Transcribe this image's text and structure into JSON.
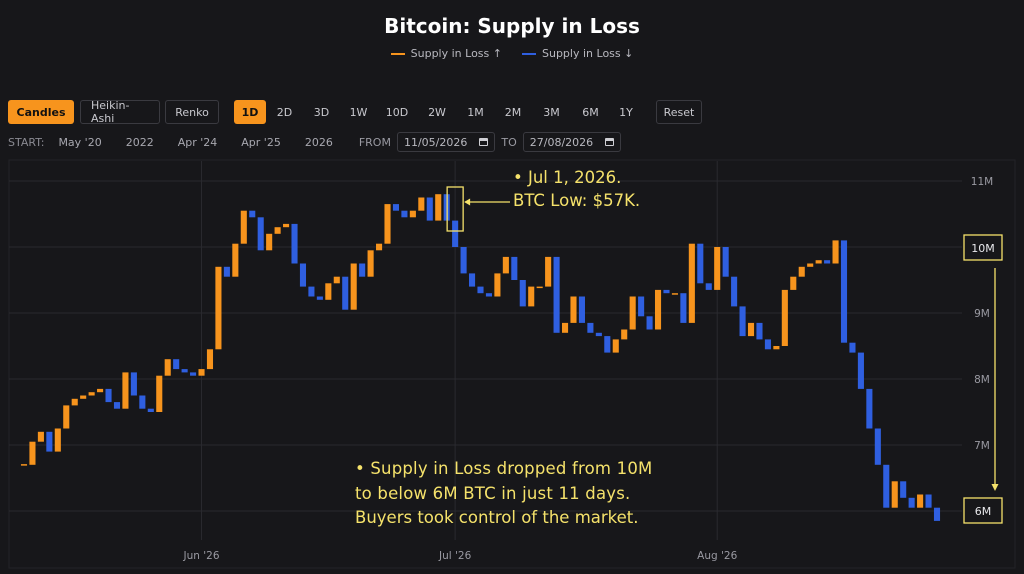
{
  "title": "Bitcoin: Supply in Loss",
  "legend": [
    {
      "label": "Supply in Loss ↑",
      "color": "#f7941d"
    },
    {
      "label": "Supply in Loss ↓",
      "color": "#2f5fe0"
    }
  ],
  "toolbar": {
    "chart_types": [
      "Candles",
      "Heikin-Ashi",
      "Renko"
    ],
    "active_chart_type": "Candles",
    "periods": [
      "1D",
      "2D",
      "3D",
      "1W",
      "10D",
      "2W",
      "1M",
      "2M",
      "3M",
      "6M",
      "1Y"
    ],
    "active_period": "1D",
    "reset_label": "Reset"
  },
  "date_range": {
    "start_label": "START:",
    "quick": [
      "May '20",
      "2022",
      "Apr '24",
      "Apr '25",
      "2026"
    ],
    "from_label": "FROM",
    "from_value": "11/05/2026",
    "to_label": "TO",
    "to_value": "27/08/2026"
  },
  "annotations": {
    "top_line1": "• Jul 1, 2026.",
    "top_line2": "BTC Low: $57K.",
    "bottom_line1": "• Supply in Loss dropped from 10M",
    "bottom_line2": "to below 6M BTC in just 11 days.",
    "bottom_line3": "Buyers took control of the market.",
    "label_10m": "10M",
    "label_6m": "6M",
    "highlight_color": "#f5e26b"
  },
  "colors": {
    "up": "#f7941d",
    "down": "#2f5fe0",
    "background": "#17171a",
    "grid": "#2a2a2f"
  },
  "chart_data": {
    "type": "candlestick",
    "title": "Bitcoin: Supply in Loss",
    "y_unit": "BTC",
    "ylim": [
      5.5,
      11.0
    ],
    "y_ticks": [
      6,
      7,
      8,
      9,
      10,
      11
    ],
    "y_tick_labels": [
      "6M",
      "7M",
      "8M",
      "9M",
      "10M",
      "11M"
    ],
    "x_ticks": [
      "Jun '26",
      "Jul '26",
      "Aug '26"
    ],
    "x_tick_dates": [
      "2026-06-01",
      "2026-07-01",
      "2026-08-01"
    ],
    "date_range": [
      "2026-05-11",
      "2026-08-27"
    ],
    "grid": true,
    "legend_position": "top-center",
    "series": [
      {
        "name": "Supply in Loss ↑",
        "color": "#f7941d"
      },
      {
        "name": "Supply in Loss ↓",
        "color": "#2f5fe0"
      }
    ],
    "candles": [
      {
        "date": "2026-05-11",
        "open": 6.69,
        "close": 6.71
      },
      {
        "date": "2026-05-12",
        "open": 6.7,
        "close": 7.05
      },
      {
        "date": "2026-05-13",
        "open": 7.05,
        "close": 7.2
      },
      {
        "date": "2026-05-14",
        "open": 7.2,
        "close": 6.9
      },
      {
        "date": "2026-05-15",
        "open": 6.9,
        "close": 7.25
      },
      {
        "date": "2026-05-16",
        "open": 7.25,
        "close": 7.6
      },
      {
        "date": "2026-05-17",
        "open": 7.6,
        "close": 7.7
      },
      {
        "date": "2026-05-18",
        "open": 7.7,
        "close": 7.75
      },
      {
        "date": "2026-05-19",
        "open": 7.75,
        "close": 7.8
      },
      {
        "date": "2026-05-20",
        "open": 7.8,
        "close": 7.85
      },
      {
        "date": "2026-05-21",
        "open": 7.85,
        "close": 7.65
      },
      {
        "date": "2026-05-22",
        "open": 7.65,
        "close": 7.55
      },
      {
        "date": "2026-05-23",
        "open": 7.55,
        "close": 8.1
      },
      {
        "date": "2026-05-24",
        "open": 8.1,
        "close": 7.75
      },
      {
        "date": "2026-05-25",
        "open": 7.75,
        "close": 7.55
      },
      {
        "date": "2026-05-26",
        "open": 7.55,
        "close": 7.5
      },
      {
        "date": "2026-05-27",
        "open": 7.5,
        "close": 8.05
      },
      {
        "date": "2026-05-28",
        "open": 8.05,
        "close": 8.3
      },
      {
        "date": "2026-05-29",
        "open": 8.3,
        "close": 8.15
      },
      {
        "date": "2026-05-30",
        "open": 8.15,
        "close": 8.1
      },
      {
        "date": "2026-05-31",
        "open": 8.1,
        "close": 8.05
      },
      {
        "date": "2026-06-01",
        "open": 8.05,
        "close": 8.15
      },
      {
        "date": "2026-06-02",
        "open": 8.15,
        "close": 8.45
      },
      {
        "date": "2026-06-03",
        "open": 8.45,
        "close": 9.7
      },
      {
        "date": "2026-06-04",
        "open": 9.7,
        "close": 9.55
      },
      {
        "date": "2026-06-05",
        "open": 9.55,
        "close": 10.05
      },
      {
        "date": "2026-06-06",
        "open": 10.05,
        "close": 10.55
      },
      {
        "date": "2026-06-07",
        "open": 10.55,
        "close": 10.45
      },
      {
        "date": "2026-06-08",
        "open": 10.45,
        "close": 9.95
      },
      {
        "date": "2026-06-09",
        "open": 9.95,
        "close": 10.2
      },
      {
        "date": "2026-06-10",
        "open": 10.2,
        "close": 10.3
      },
      {
        "date": "2026-06-11",
        "open": 10.3,
        "close": 10.35
      },
      {
        "date": "2026-06-12",
        "open": 10.35,
        "close": 9.75
      },
      {
        "date": "2026-06-13",
        "open": 9.75,
        "close": 9.4
      },
      {
        "date": "2026-06-14",
        "open": 9.4,
        "close": 9.25
      },
      {
        "date": "2026-06-15",
        "open": 9.25,
        "close": 9.2
      },
      {
        "date": "2026-06-16",
        "open": 9.2,
        "close": 9.45
      },
      {
        "date": "2026-06-17",
        "open": 9.45,
        "close": 9.55
      },
      {
        "date": "2026-06-18",
        "open": 9.55,
        "close": 9.05
      },
      {
        "date": "2026-06-19",
        "open": 9.05,
        "close": 9.75
      },
      {
        "date": "2026-06-20",
        "open": 9.75,
        "close": 9.55
      },
      {
        "date": "2026-06-21",
        "open": 9.55,
        "close": 9.95
      },
      {
        "date": "2026-06-22",
        "open": 9.95,
        "close": 10.05
      },
      {
        "date": "2026-06-23",
        "open": 10.05,
        "close": 10.65
      },
      {
        "date": "2026-06-24",
        "open": 10.65,
        "close": 10.55
      },
      {
        "date": "2026-06-25",
        "open": 10.55,
        "close": 10.45
      },
      {
        "date": "2026-06-26",
        "open": 10.45,
        "close": 10.55
      },
      {
        "date": "2026-06-27",
        "open": 10.55,
        "close": 10.75
      },
      {
        "date": "2026-06-28",
        "open": 10.75,
        "close": 10.4
      },
      {
        "date": "2026-06-29",
        "open": 10.4,
        "close": 10.8
      },
      {
        "date": "2026-06-30",
        "open": 10.8,
        "close": 10.4
      },
      {
        "date": "2026-07-01",
        "open": 10.4,
        "close": 10.0
      },
      {
        "date": "2026-07-02",
        "open": 10.0,
        "close": 9.6
      },
      {
        "date": "2026-07-03",
        "open": 9.6,
        "close": 9.4
      },
      {
        "date": "2026-07-04",
        "open": 9.4,
        "close": 9.3
      },
      {
        "date": "2026-07-05",
        "open": 9.3,
        "close": 9.25
      },
      {
        "date": "2026-07-06",
        "open": 9.25,
        "close": 9.6
      },
      {
        "date": "2026-07-07",
        "open": 9.6,
        "close": 9.85
      },
      {
        "date": "2026-07-08",
        "open": 9.85,
        "close": 9.5
      },
      {
        "date": "2026-07-09",
        "open": 9.5,
        "close": 9.1
      },
      {
        "date": "2026-07-10",
        "open": 9.1,
        "close": 9.4
      },
      {
        "date": "2026-07-11",
        "open": 9.4,
        "close": 9.4
      },
      {
        "date": "2026-07-12",
        "open": 9.4,
        "close": 9.85
      },
      {
        "date": "2026-07-13",
        "open": 9.85,
        "close": 8.7
      },
      {
        "date": "2026-07-14",
        "open": 8.7,
        "close": 8.85
      },
      {
        "date": "2026-07-15",
        "open": 8.85,
        "close": 9.25
      },
      {
        "date": "2026-07-16",
        "open": 9.25,
        "close": 8.85
      },
      {
        "date": "2026-07-17",
        "open": 8.85,
        "close": 8.7
      },
      {
        "date": "2026-07-18",
        "open": 8.7,
        "close": 8.65
      },
      {
        "date": "2026-07-19",
        "open": 8.65,
        "close": 8.4
      },
      {
        "date": "2026-07-20",
        "open": 8.4,
        "close": 8.6
      },
      {
        "date": "2026-07-21",
        "open": 8.6,
        "close": 8.75
      },
      {
        "date": "2026-07-22",
        "open": 8.75,
        "close": 9.25
      },
      {
        "date": "2026-07-23",
        "open": 9.25,
        "close": 8.95
      },
      {
        "date": "2026-07-24",
        "open": 8.95,
        "close": 8.75
      },
      {
        "date": "2026-07-25",
        "open": 8.75,
        "close": 9.35
      },
      {
        "date": "2026-07-26",
        "open": 9.35,
        "close": 9.3
      },
      {
        "date": "2026-07-27",
        "open": 9.3,
        "close": 9.3
      },
      {
        "date": "2026-07-28",
        "open": 9.3,
        "close": 8.85
      },
      {
        "date": "2026-07-29",
        "open": 8.85,
        "close": 10.05
      },
      {
        "date": "2026-07-30",
        "open": 10.05,
        "close": 9.45
      },
      {
        "date": "2026-07-31",
        "open": 9.45,
        "close": 9.35
      },
      {
        "date": "2026-08-01",
        "open": 9.35,
        "close": 10.0
      },
      {
        "date": "2026-08-02",
        "open": 10.0,
        "close": 9.55
      },
      {
        "date": "2026-08-03",
        "open": 9.55,
        "close": 9.1
      },
      {
        "date": "2026-08-04",
        "open": 9.1,
        "close": 8.65
      },
      {
        "date": "2026-08-05",
        "open": 8.65,
        "close": 8.85
      },
      {
        "date": "2026-08-06",
        "open": 8.85,
        "close": 8.6
      },
      {
        "date": "2026-08-07",
        "open": 8.6,
        "close": 8.45
      },
      {
        "date": "2026-08-08",
        "open": 8.45,
        "close": 8.5
      },
      {
        "date": "2026-08-09",
        "open": 8.5,
        "close": 9.35
      },
      {
        "date": "2026-08-10",
        "open": 9.35,
        "close": 9.55
      },
      {
        "date": "2026-08-11",
        "open": 9.55,
        "close": 9.7
      },
      {
        "date": "2026-08-12",
        "open": 9.7,
        "close": 9.75
      },
      {
        "date": "2026-08-13",
        "open": 9.75,
        "close": 9.8
      },
      {
        "date": "2026-08-14",
        "open": 9.8,
        "close": 9.75
      },
      {
        "date": "2026-08-15",
        "open": 9.75,
        "close": 10.1
      },
      {
        "date": "2026-08-16",
        "open": 10.1,
        "close": 8.55
      },
      {
        "date": "2026-08-17",
        "open": 8.55,
        "close": 8.4
      },
      {
        "date": "2026-08-18",
        "open": 8.4,
        "close": 7.85
      },
      {
        "date": "2026-08-19",
        "open": 7.85,
        "close": 7.25
      },
      {
        "date": "2026-08-20",
        "open": 7.25,
        "close": 6.7
      },
      {
        "date": "2026-08-21",
        "open": 6.7,
        "close": 6.05
      },
      {
        "date": "2026-08-22",
        "open": 6.05,
        "close": 6.45
      },
      {
        "date": "2026-08-23",
        "open": 6.45,
        "close": 6.2
      },
      {
        "date": "2026-08-24",
        "open": 6.2,
        "close": 6.05
      },
      {
        "date": "2026-08-25",
        "open": 6.05,
        "close": 6.25
      },
      {
        "date": "2026-08-26",
        "open": 6.25,
        "close": 6.05
      },
      {
        "date": "2026-08-27",
        "open": 6.05,
        "close": 5.85
      }
    ]
  }
}
